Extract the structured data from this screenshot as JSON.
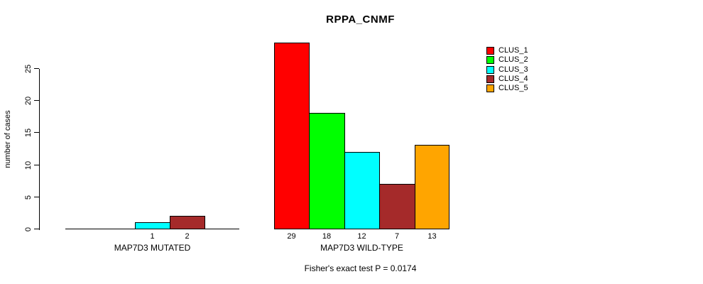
{
  "chart_data": {
    "type": "bar",
    "title": "RPPA_CNMF",
    "ylabel": "number of cases",
    "xlabel": "",
    "ylim": [
      0,
      25
    ],
    "yticks": [
      0,
      5,
      10,
      15,
      20,
      25
    ],
    "grid": false,
    "legend_position": "top-right",
    "series_labels": [
      "CLUS_1",
      "CLUS_2",
      "CLUS_3",
      "CLUS_4",
      "CLUS_5"
    ],
    "series_colors": [
      "#FF0000",
      "#00FF00",
      "#00FFFF",
      "#A52A2A",
      "#FFA500"
    ],
    "groups": [
      {
        "label": "MAP7D3 MUTATED",
        "values": [
          0,
          0,
          1,
          2,
          0
        ]
      },
      {
        "label": "MAP7D3 WILD-TYPE",
        "values": [
          29,
          18,
          12,
          7,
          13
        ]
      }
    ],
    "bar_value_labels_visible_for_nonzero_only": true,
    "annotation": "Fisher's exact test P = 0.0174"
  }
}
